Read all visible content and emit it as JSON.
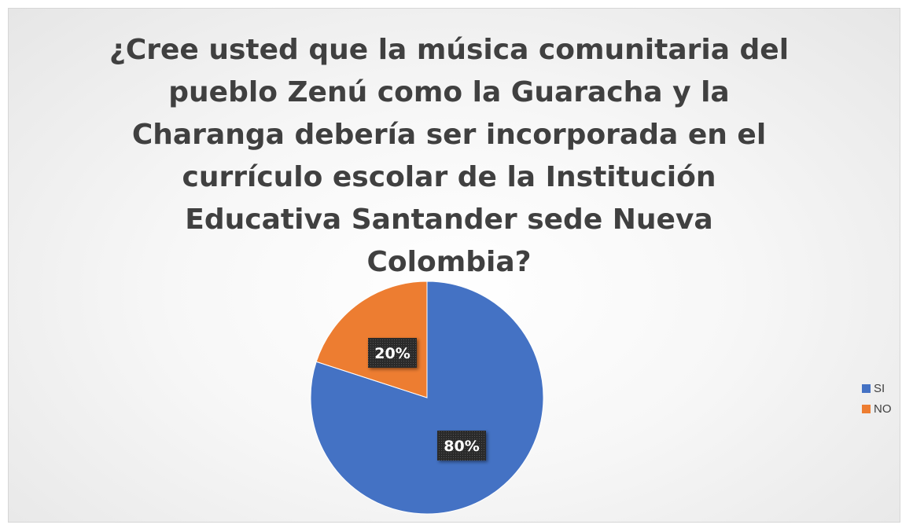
{
  "chart_data": {
    "type": "pie",
    "title": "¿Cree usted que la música comunitaria del pueblo Zenú como la Guaracha y la Charanga debería ser incorporada en el currículo escolar de la Institución Educativa Santander sede Nueva Colombia?",
    "categories": [
      "SI",
      "NO"
    ],
    "values": [
      80,
      20
    ],
    "data_labels": [
      "80%",
      "20%"
    ],
    "colors": [
      "#4472C4",
      "#ED7D31"
    ],
    "legend_position": "right"
  }
}
